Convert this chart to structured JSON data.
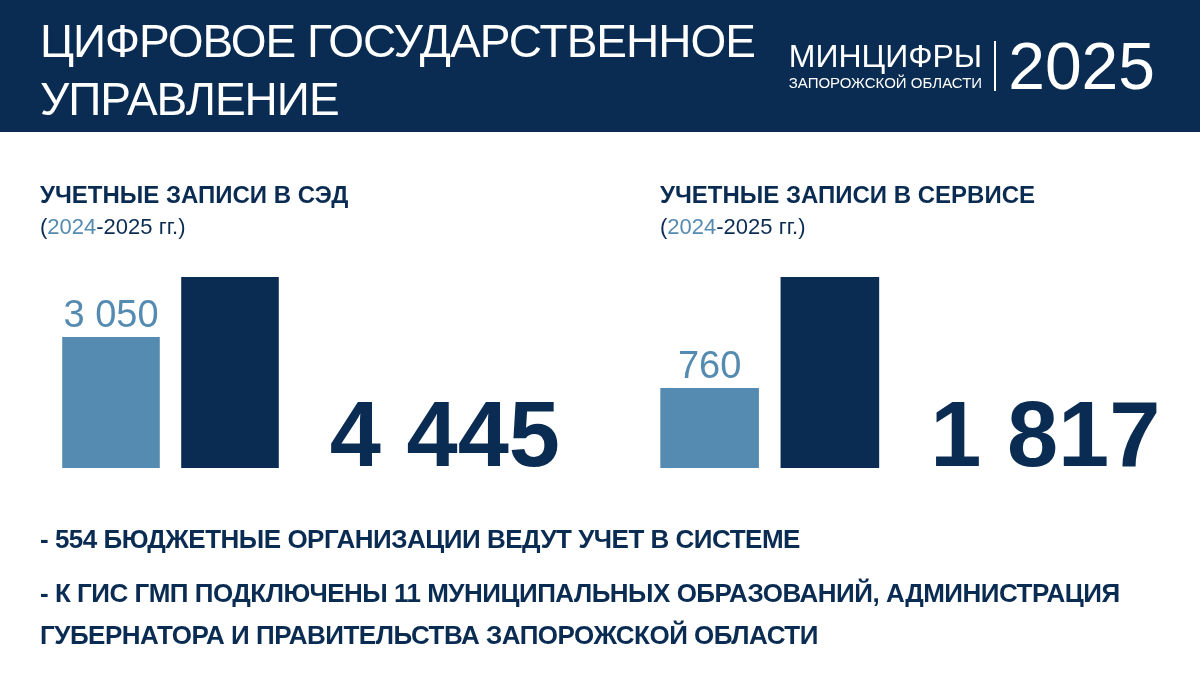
{
  "chart_data": [
    {
      "type": "other",
      "title": "ЦИФРОВОЕ ГОСУДАРСТВЕННОЕ УПРАВЛЕНИЕ",
      "annotations": [
        "МИНЦИФРЫ",
        "ЗАПОРОЖСКОЙ ОБЛАСТИ",
        "2025"
      ]
    },
    {
      "type": "bar",
      "title": "УЧЕТНЫЕ ЗАПИСИ В СЭД",
      "subtitle": "(2024-2025 гг.)",
      "categories": [
        null,
        null
      ],
      "values": [
        3050,
        4445
      ],
      "colors": [
        "#558bb0",
        "#0b2c52"
      ],
      "value_labels": [
        "3 050",
        null
      ],
      "annotations": [
        "4 445"
      ]
    },
    {
      "type": "bar",
      "title": "УЧЕТНЫЕ ЗАПИСИ В СЕРВИСЕ",
      "subtitle": "(2024-2025 гг.)",
      "categories": [
        null,
        null
      ],
      "values": [
        760,
        1817
      ],
      "colors": [
        "#558bb0",
        "#0b2c52"
      ],
      "value_labels": [
        "760",
        null
      ],
      "annotations": [
        "1 817"
      ]
    },
    {
      "type": "other",
      "annotations": [
        "- 554 БЮДЖЕТНЫЕ ОРГАНИЗАЦИИ ВЕДУТ УЧЕТ В СИСТЕМЕ",
        "- К ГИС ГМП ПОДКЛЮЧЕНЫ 11 МУНИЦИПАЛЬНЫХ ОБРАЗОВАНИЙ, АДМИНИСТРАЦИЯ ГУБЕРНАТОРА И ПРАВИТЕЛЬСТВА ЗАПОРОЖСКОЙ ОБЛАСТИ"
      ]
    }
  ]
}
